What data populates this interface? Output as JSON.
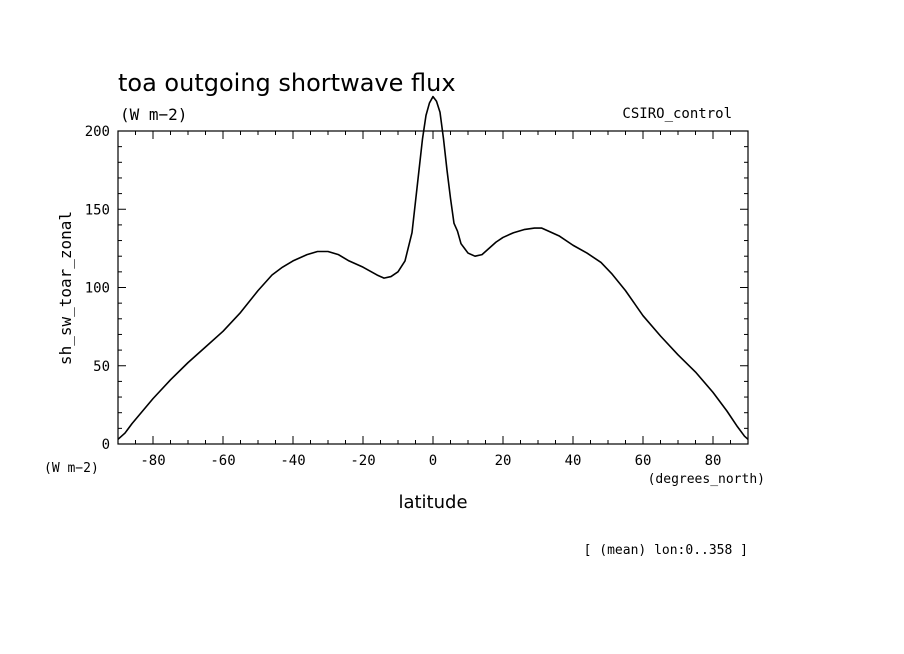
{
  "chart_data": {
    "type": "line",
    "title": "toa outgoing shortwave flux",
    "title_units": "(W m−2)",
    "model_label": "CSIRO_control",
    "ylabel": "sh_sw_toar_zonal",
    "y_units_label": "(W m−2)",
    "xlabel": "latitude",
    "x_units_label": "(degrees_north)",
    "footer_note": "[ (mean) lon:0..358 ]",
    "xlim": [
      -90,
      90
    ],
    "ylim": [
      0,
      200
    ],
    "x_ticks": [
      -80,
      -60,
      -40,
      -20,
      0,
      20,
      40,
      60,
      80
    ],
    "y_ticks": [
      0,
      50,
      100,
      150,
      200
    ],
    "grid": false,
    "series": [
      {
        "color": "#000000",
        "x": [
          -90,
          -88,
          -86,
          -83,
          -80,
          -75,
          -70,
          -65,
          -60,
          -55,
          -50,
          -46,
          -43,
          -40,
          -36,
          -33,
          -30,
          -27,
          -24,
          -20,
          -16,
          -14,
          -12,
          -10,
          -8,
          -6,
          -5,
          -4,
          -3,
          -2,
          -1,
          0,
          1,
          2,
          3,
          4,
          5,
          6,
          7,
          8,
          9,
          10,
          12,
          14,
          16,
          18,
          20,
          23,
          26,
          29,
          31,
          33,
          36,
          40,
          44,
          48,
          51,
          55,
          60,
          65,
          70,
          75,
          80,
          84,
          87,
          89,
          90
        ],
        "y": [
          3,
          7,
          13,
          21,
          29,
          41,
          52,
          62,
          72,
          84,
          98,
          108,
          113,
          117,
          121,
          123,
          123,
          121,
          117,
          113,
          108,
          106,
          107,
          110,
          117,
          135,
          155,
          175,
          195,
          210,
          218,
          222,
          219,
          212,
          195,
          175,
          157,
          141,
          136,
          128,
          125,
          122,
          120,
          121,
          125,
          129,
          132,
          135,
          137,
          138,
          138,
          136,
          133,
          127,
          122,
          116,
          109,
          98,
          82,
          69,
          57,
          46,
          33,
          21,
          11,
          5,
          3
        ]
      }
    ]
  }
}
